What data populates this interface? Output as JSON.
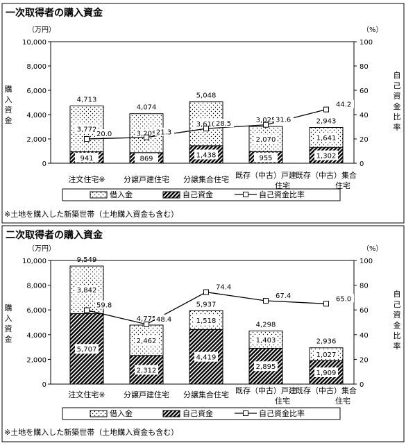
{
  "chart_data": [
    {
      "type": "bar",
      "title": "一次取得者の購入資金",
      "ylabel_left": "購入資金",
      "unit_left": "（万円）",
      "ylabel_right": "自己資金比率",
      "unit_right": "（%）",
      "ylim": [
        0,
        10000
      ],
      "y2lim": [
        0,
        100
      ],
      "yticks": [
        "0",
        "2,000",
        "4,000",
        "6,000",
        "8,000",
        "10,000"
      ],
      "y2ticks": [
        "0",
        "20",
        "40",
        "60",
        "80",
        "100"
      ],
      "categories": [
        {
          "line1": "注文住宅※",
          "line2": ""
        },
        {
          "line1": "分譲戸建住宅",
          "line2": ""
        },
        {
          "line1": "分譲集合住宅",
          "line2": ""
        },
        {
          "line1": "既存（中古）戸建",
          "line2": "住宅"
        },
        {
          "line1": "既存（中古）集合",
          "line2": "住宅"
        }
      ],
      "series": [
        {
          "name": "自己資金",
          "values": [
            941,
            869,
            1438,
            955,
            1302
          ],
          "labels": [
            "941",
            "869",
            "1,438",
            "955",
            "1,302"
          ]
        },
        {
          "name": "借入金",
          "values": [
            3772,
            3205,
            3610,
            2070,
            1641
          ],
          "labels": [
            "3,772",
            "3,205",
            "3,610",
            "2,070",
            "1,641"
          ]
        },
        {
          "name": "自己資金比率",
          "values": [
            20.0,
            21.3,
            28.5,
            31.6,
            44.2
          ],
          "labels": [
            "20.0",
            "21.3",
            "28.5",
            "31.6",
            "44.2"
          ]
        }
      ],
      "totals": [
        "4,713",
        "4,074",
        "5,048",
        "3,025",
        "2,943"
      ],
      "legend": [
        "借入金",
        "自己資金",
        "自己資金比率"
      ],
      "footnote": "※土地を購入した新築世帯（土地購入資金も含む）"
    },
    {
      "type": "bar",
      "title": "二次取得者の購入資金",
      "ylabel_left": "購入資金",
      "unit_left": "（万円）",
      "ylabel_right": "自己資金比率",
      "unit_right": "（%）",
      "ylim": [
        0,
        10000
      ],
      "y2lim": [
        0,
        100
      ],
      "yticks": [
        "0",
        "2,000",
        "4,000",
        "6,000",
        "8,000",
        "10,000"
      ],
      "y2ticks": [
        "0",
        "20",
        "40",
        "60",
        "80",
        "100"
      ],
      "categories": [
        {
          "line1": "注文住宅※",
          "line2": ""
        },
        {
          "line1": "分譲戸建住宅",
          "line2": ""
        },
        {
          "line1": "分譲集合住宅",
          "line2": ""
        },
        {
          "line1": "既存（中古）戸建",
          "line2": "住宅"
        },
        {
          "line1": "既存（中古）集合",
          "line2": "住宅"
        }
      ],
      "series": [
        {
          "name": "自己資金",
          "values": [
            5707,
            2312,
            4419,
            2895,
            1909
          ],
          "labels": [
            "5,707",
            "2,312",
            "4,419",
            "2,895",
            "1,909"
          ]
        },
        {
          "name": "借入金",
          "values": [
            3842,
            2462,
            1518,
            1403,
            1027
          ],
          "labels": [
            "3,842",
            "2,462",
            "1,518",
            "1,403",
            "1,027"
          ]
        },
        {
          "name": "自己資金比率",
          "values": [
            59.8,
            48.4,
            74.4,
            67.4,
            65.0
          ],
          "labels": [
            "59.8",
            "48.4",
            "74.4",
            "67.4",
            "65.0"
          ]
        }
      ],
      "totals": [
        "9,549",
        "4,775",
        "5,937",
        "4,298",
        "2,936"
      ],
      "legend": [
        "借入金",
        "自己資金",
        "自己資金比率"
      ],
      "footnote": "※土地を購入した新築世帯（土地購入資金も含む）"
    }
  ]
}
